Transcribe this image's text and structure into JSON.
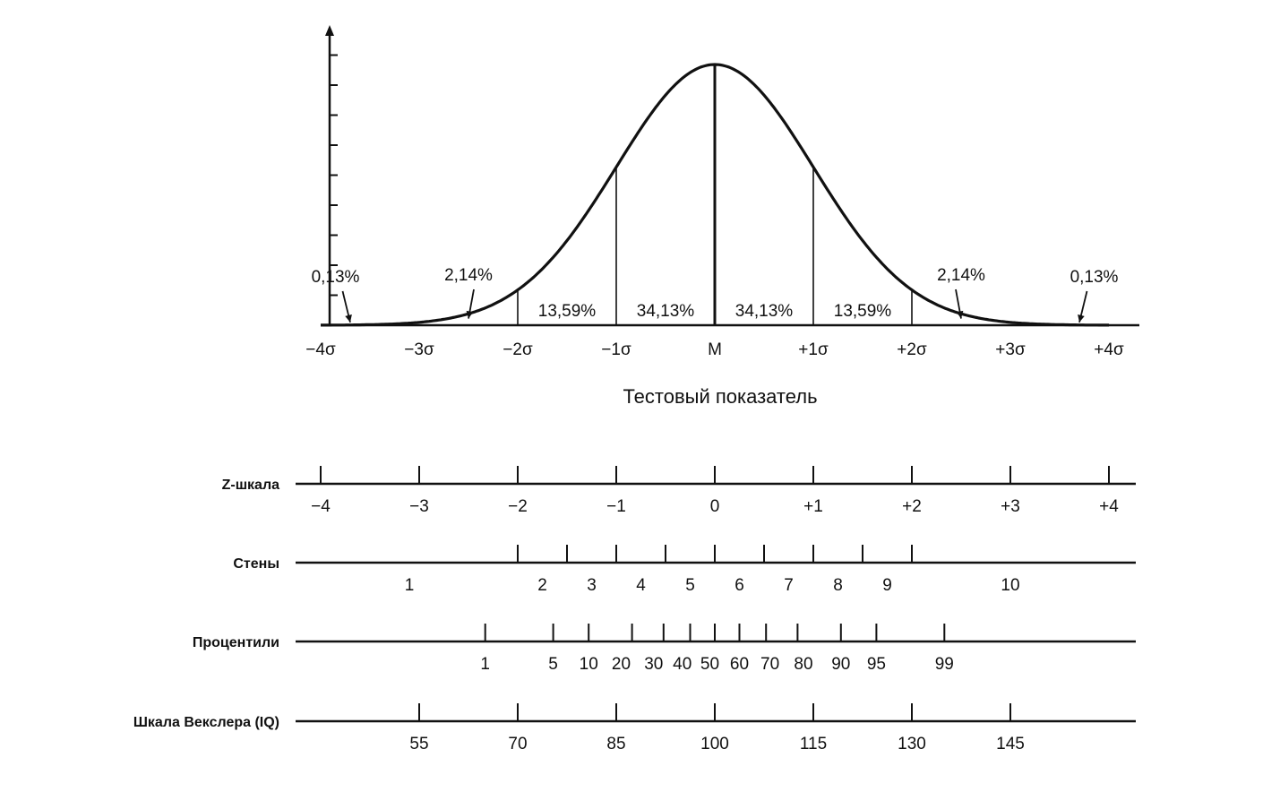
{
  "chart_data": {
    "type": "area",
    "xlabel": "Тестовый показатель",
    "distribution": "normal",
    "x_range_sigma": [
      -4,
      4
    ],
    "sigma_ticks": [
      {
        "z": -4,
        "label": "−4σ"
      },
      {
        "z": -3,
        "label": "−3σ"
      },
      {
        "z": -2,
        "label": "−2σ"
      },
      {
        "z": -1,
        "label": "−1σ"
      },
      {
        "z": 0,
        "label": "M"
      },
      {
        "z": 1,
        "label": "+1σ"
      },
      {
        "z": 2,
        "label": "+2σ"
      },
      {
        "z": 3,
        "label": "+3σ"
      },
      {
        "z": 4,
        "label": "+4σ"
      }
    ],
    "segments": [
      {
        "from": -4,
        "to": -3,
        "percent": "0,13%",
        "label_pos": "outside-left"
      },
      {
        "from": -3,
        "to": -2,
        "percent": "2,14%",
        "label_pos": "outside-left"
      },
      {
        "from": -2,
        "to": -1,
        "percent": "13,59%"
      },
      {
        "from": -1,
        "to": 0,
        "percent": "34,13%"
      },
      {
        "from": 0,
        "to": 1,
        "percent": "34,13%"
      },
      {
        "from": 1,
        "to": 2,
        "percent": "13,59%"
      },
      {
        "from": 2,
        "to": 3,
        "percent": "2,14%",
        "label_pos": "outside-right"
      },
      {
        "from": 3,
        "to": 4,
        "percent": "0,13%",
        "label_pos": "outside-right"
      }
    ],
    "dividers_z": [
      -2,
      -1,
      0,
      1,
      2
    ],
    "scales": [
      {
        "name": "Z-шкала",
        "ticks_z": [
          -4,
          -3,
          -2,
          -1,
          0,
          1,
          2,
          3,
          4
        ],
        "labels": [
          {
            "z": -4,
            "text": "−4"
          },
          {
            "z": -3,
            "text": "−3"
          },
          {
            "z": -2,
            "text": "−2"
          },
          {
            "z": -1,
            "text": "−1"
          },
          {
            "z": 0,
            "text": "0"
          },
          {
            "z": 1,
            "text": "+1"
          },
          {
            "z": 2,
            "text": "+2"
          },
          {
            "z": 3,
            "text": "+3"
          },
          {
            "z": 4,
            "text": "+4"
          }
        ]
      },
      {
        "name": "Стены",
        "ticks_z": [
          -2,
          -1.5,
          -1,
          -0.5,
          0,
          0.5,
          1,
          1.5,
          2
        ],
        "labels": [
          {
            "z": -3.1,
            "text": "1"
          },
          {
            "z": -1.75,
            "text": "2"
          },
          {
            "z": -1.25,
            "text": "3"
          },
          {
            "z": -0.75,
            "text": "4"
          },
          {
            "z": -0.25,
            "text": "5"
          },
          {
            "z": 0.25,
            "text": "6"
          },
          {
            "z": 0.75,
            "text": "7"
          },
          {
            "z": 1.25,
            "text": "8"
          },
          {
            "z": 1.75,
            "text": "9"
          },
          {
            "z": 3.0,
            "text": "10"
          }
        ]
      },
      {
        "name": "Процентили",
        "ticks_z": [
          -2.33,
          -1.64,
          -1.28,
          -0.84,
          -0.52,
          -0.25,
          0,
          0.25,
          0.52,
          0.84,
          1.28,
          1.64,
          2.33
        ],
        "labels": [
          {
            "z": -2.33,
            "text": "1"
          },
          {
            "z": -1.64,
            "text": "5"
          },
          {
            "z": -1.28,
            "text": "10"
          },
          {
            "z": -0.95,
            "text": "20"
          },
          {
            "z": -0.62,
            "text": "30"
          },
          {
            "z": -0.33,
            "text": "40"
          },
          {
            "z": -0.05,
            "text": "50"
          },
          {
            "z": 0.25,
            "text": "60"
          },
          {
            "z": 0.56,
            "text": "70"
          },
          {
            "z": 0.9,
            "text": "80"
          },
          {
            "z": 1.28,
            "text": "90"
          },
          {
            "z": 1.64,
            "text": "95"
          },
          {
            "z": 2.33,
            "text": "99"
          }
        ]
      },
      {
        "name": "Шкала Векслера (IQ)",
        "ticks_z": [
          -3,
          -2,
          -1,
          0,
          1,
          2,
          3
        ],
        "labels": [
          {
            "z": -3,
            "text": "55"
          },
          {
            "z": -2,
            "text": "70"
          },
          {
            "z": -1,
            "text": "85"
          },
          {
            "z": 0,
            "text": "100"
          },
          {
            "z": 1,
            "text": "115"
          },
          {
            "z": 2,
            "text": "130"
          },
          {
            "z": 3,
            "text": "145"
          }
        ]
      }
    ]
  }
}
